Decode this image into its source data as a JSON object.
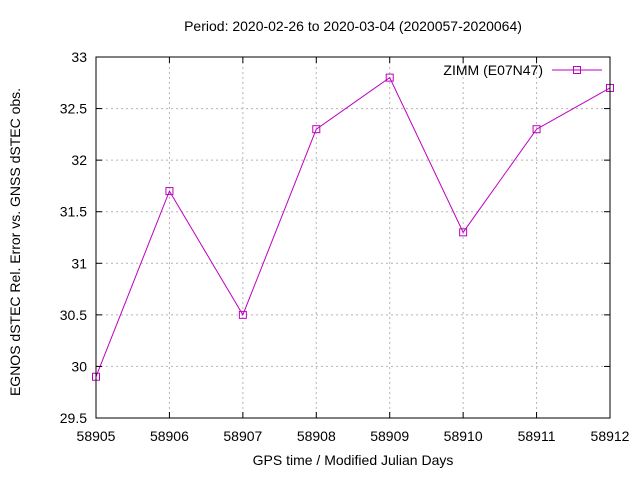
{
  "chart_data": {
    "type": "line",
    "title": "Period: 2020-02-26 to 2020-03-04 (2020057-2020064)",
    "xlabel": "GPS time / Modified Julian Days",
    "ylabel": "EGNOS dSTEC Rel. Error vs. GNSS dSTEC obs.",
    "x": [
      58905,
      58906,
      58907,
      58908,
      58909,
      58910,
      58911,
      58912
    ],
    "series": [
      {
        "name": "ZIMM (E07N47)",
        "color": "#bf00bf",
        "marker": "open-square",
        "values": [
          29.9,
          31.7,
          30.5,
          32.3,
          32.8,
          31.3,
          32.3,
          32.7
        ]
      }
    ],
    "xlim": [
      58905,
      58912
    ],
    "ylim": [
      29.5,
      33
    ],
    "xticks": [
      58905,
      58906,
      58907,
      58908,
      58909,
      58910,
      58911,
      58912
    ],
    "yticks": [
      29.5,
      30,
      30.5,
      31,
      31.5,
      32,
      32.5,
      33
    ],
    "grid": true,
    "grid_color": "#b4b4b4",
    "axis_color": "#000000",
    "background": "#ffffff",
    "legend_position": "top-right-inside"
  }
}
